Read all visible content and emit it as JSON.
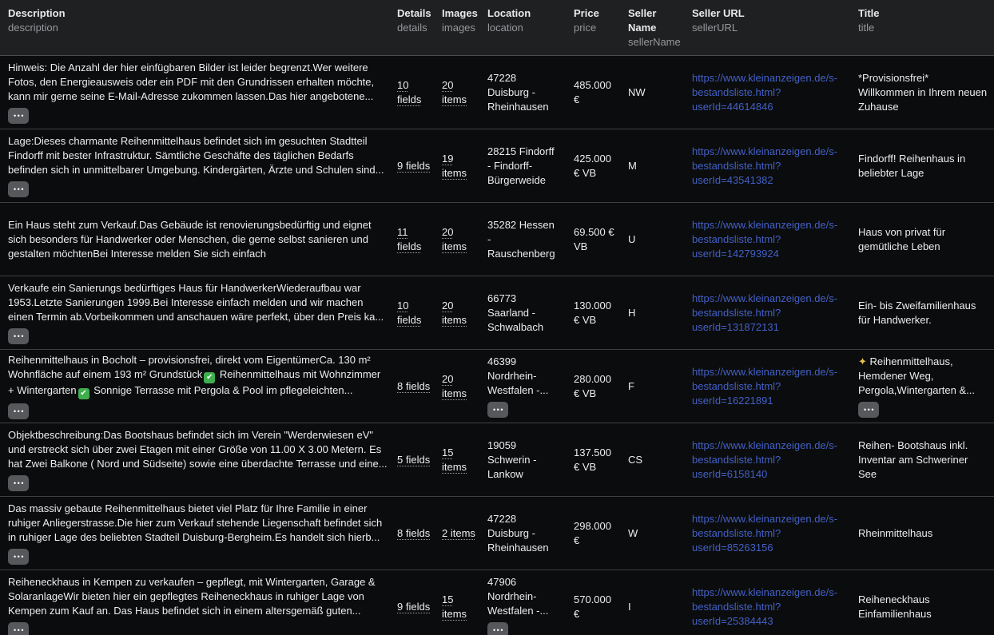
{
  "colors": {
    "link_blue": "#4360c6",
    "header_bg": "#1e2022",
    "row_bg": "#0b0c0d",
    "separator": "#3e4144",
    "ellipsis_button_gray": "#56585b",
    "check_emoji_green": "#3fae4d"
  },
  "header": {
    "columns": [
      {
        "label": "Description",
        "sub": "description"
      },
      {
        "label": "Details",
        "sub": "details"
      },
      {
        "label": "Images",
        "sub": "images"
      },
      {
        "label": "Location",
        "sub": "location"
      },
      {
        "label": "Price",
        "sub": "price"
      },
      {
        "label": "Seller Name",
        "sub": "sellerName"
      },
      {
        "label": "Seller URL",
        "sub": "sellerURL"
      },
      {
        "label": "Title",
        "sub": "title"
      }
    ]
  },
  "rows": [
    {
      "description": "Hinweis: Die Anzahl der hier einfügbaren Bilder ist leider begrenzt.Wer weitere Fotos, den Energieausweis oder ein PDF mit den Grundrissen erhalten möchte, kann mir gerne seine E-Mail-Adresse zukommen lassen.Das hier angebotene...",
      "description_expand": true,
      "details": "10 fields",
      "images": "20 items",
      "location": "47228 Duisburg - Rheinhausen",
      "location_expand": false,
      "price": "485.000 €",
      "sellerName": "NW",
      "sellerURL": "https://www.kleinanzeigen.de/s-bestandsliste.html?userId=44614846",
      "title": "*Provisionsfrei* Willkommen in Ihrem neuen Zuhause",
      "title_expand": false
    },
    {
      "description": "Lage:Dieses charmante Reihenmittelhaus befindet sich im gesuchten Stadtteil Findorff mit bester Infrastruktur. Sämtliche Geschäfte des täglichen Bedarfs befinden sich in unmittelbarer Umgebung. Kindergärten, Ärzte und Schulen sind...",
      "description_expand": true,
      "details": "9 fields",
      "images": "19 items",
      "location": "28215 Findorff - Findorff-Bürgerweide",
      "location_expand": false,
      "price": "425.000 € VB",
      "sellerName": "M",
      "sellerURL": "https://www.kleinanzeigen.de/s-bestandsliste.html?userId=43541382",
      "title": "Findorff! Reihenhaus in beliebter Lage",
      "title_expand": false
    },
    {
      "description": "Ein Haus steht zum Verkauf.Das Gebäude ist renovierungsbedürftig und eignet sich besonders für Handwerker oder Menschen, die gerne selbst sanieren und gestalten möchtenBei Interesse melden Sie sich einfach",
      "description_expand": false,
      "details": "11 fields",
      "images": "20 items",
      "location": "35282 Hessen - Rauschenberg",
      "location_expand": false,
      "price": "69.500 € VB",
      "sellerName": "U",
      "sellerURL": "https://www.kleinanzeigen.de/s-bestandsliste.html?userId=142793924",
      "title": "Haus von privat für gemütliche Leben",
      "title_expand": false
    },
    {
      "description": "Verkaufe ein Sanierungs bedürftiges Haus für HandwerkerWiederaufbau war 1953.Letzte Sanierungen 1999.Bei Interesse einfach melden und wir machen einen Termin ab.Vorbeikommen und anschauen wäre perfekt, über den Preis ka...",
      "description_expand": true,
      "details": "10 fields",
      "images": "20 items",
      "location": "66773 Saarland - Schwalbach",
      "location_expand": false,
      "price": "130.000 € VB",
      "sellerName": "H",
      "sellerURL": "https://www.kleinanzeigen.de/s-bestandsliste.html?userId=131872131",
      "title": "Ein- bis Zweifamilienhaus für Handwerker.",
      "title_expand": false
    },
    {
      "description": "Reihenmittelhaus in Bocholt – provisionsfrei, direkt vom EigentümerCa. 130 m² Wohnfläche auf einem 193 m² Grundstück✅ Reihenmittelhaus mit Wohnzimmer + Wintergarten✅ Sonnige Terrasse mit Pergola & Pool im pflegeleichten...",
      "description_expand": true,
      "details": "8 fields",
      "images": "20 items",
      "location": "46399 Nordrhein-Westfalen -...",
      "location_expand": true,
      "price": "280.000 € VB",
      "sellerName": "F",
      "sellerURL": "https://www.kleinanzeigen.de/s-bestandsliste.html?userId=16221891",
      "title": "✨ Reihenmittelhaus, Hemdener Weg, Pergola,Wintergarten &...",
      "title_expand": true
    },
    {
      "description": "Objektbeschreibung:Das Bootshaus befindet sich im Verein \"Werderwiesen eV\" und erstreckt sich über zwei Etagen mit einer Größe von 11.00 X 3.00 Metern. Es hat Zwei Balkone ( Nord und Südseite) sowie eine überdachte Terrasse und eine...",
      "description_expand": true,
      "details": "5 fields",
      "images": "15 items",
      "location": "19059 Schwerin - Lankow",
      "location_expand": false,
      "price": "137.500 € VB",
      "sellerName": "CS",
      "sellerURL": "https://www.kleinanzeigen.de/s-bestandsliste.html?userId=6158140",
      "title": "Reihen- Bootshaus inkl. Inventar am Schweriner See",
      "title_expand": false
    },
    {
      "description": "Das massiv gebaute Reihenmittelhaus bietet viel Platz für Ihre Familie in einer ruhiger Anliegerstrasse.Die hier zum Verkauf stehende Liegenschaft befindet sich in ruhiger Lage des beliebten Stadteil Duisburg-Bergheim.Es handelt sich hierb...",
      "description_expand": true,
      "details": "8 fields",
      "images": "2 items",
      "location": "47228 Duisburg - Rheinhausen",
      "location_expand": false,
      "price": "298.000 €",
      "sellerName": "W",
      "sellerURL": "https://www.kleinanzeigen.de/s-bestandsliste.html?userId=85263156",
      "title": "Rheinmittelhaus",
      "title_expand": false
    },
    {
      "description": "Reiheneckhaus in Kempen zu verkaufen – gepflegt, mit Wintergarten, Garage & SolaranlageWir bieten hier ein gepflegtes Reiheneckhaus in ruhiger Lage von Kempen zum Kauf an. Das Haus befindet sich in einem altersgemäß guten...",
      "description_expand": true,
      "details": "9 fields",
      "images": "15 items",
      "location": "47906 Nordrhein-Westfalen -...",
      "location_expand": true,
      "price": "570.000 €",
      "sellerName": "I",
      "sellerURL": "https://www.kleinanzeigen.de/s-bestandsliste.html?userId=25384443",
      "title": "Reiheneckhaus Einfamilienhaus",
      "title_expand": false
    }
  ]
}
